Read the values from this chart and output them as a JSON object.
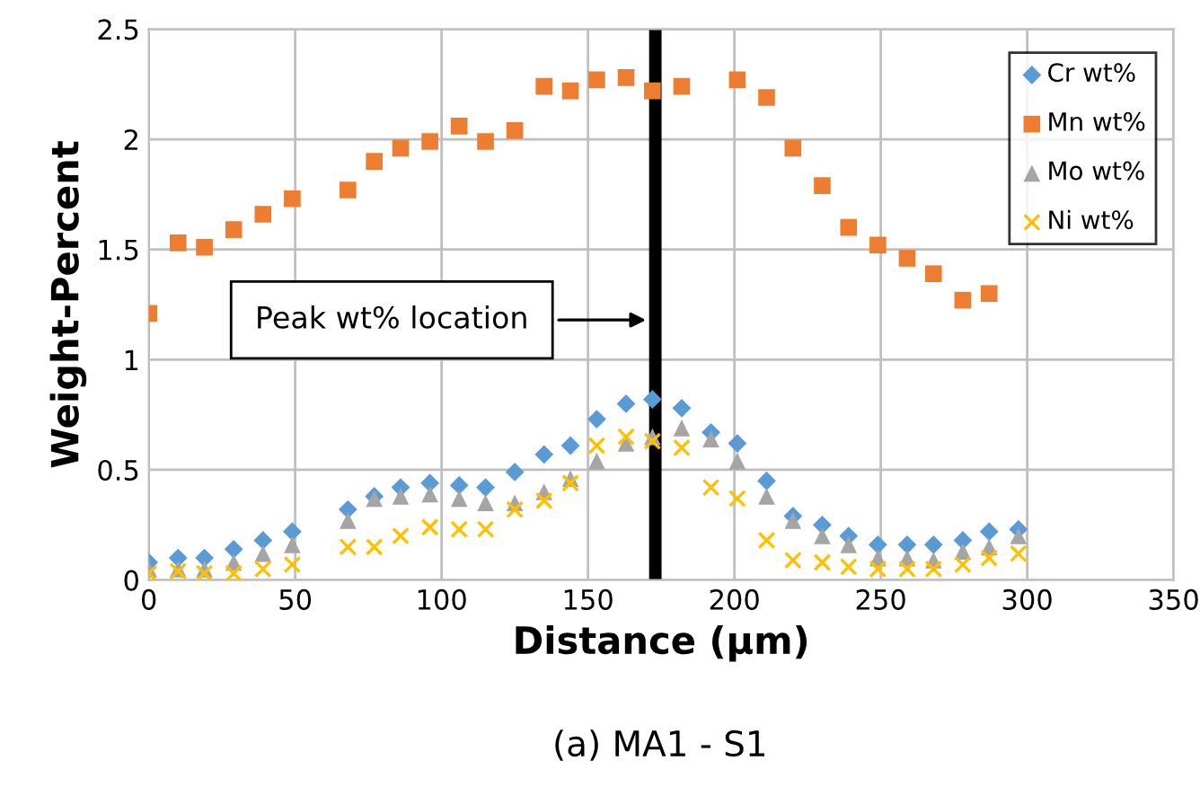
{
  "chart_data": {
    "type": "scatter",
    "xlabel": "Distance (µm)",
    "ylabel": "Weight-Percent",
    "x": [
      0,
      10,
      19,
      29,
      39,
      49,
      68,
      77,
      86,
      96,
      106,
      115,
      125,
      135,
      144,
      153,
      163,
      172,
      182,
      192,
      201,
      211,
      220,
      230,
      239,
      249,
      259,
      268,
      278,
      287,
      297
    ],
    "series": [
      {
        "name": "Cr wt%",
        "color": "#5b9bd5",
        "marker": "diamond",
        "values": [
          0.08,
          0.1,
          0.1,
          0.14,
          0.18,
          0.22,
          0.32,
          0.38,
          0.42,
          0.44,
          0.43,
          0.42,
          0.49,
          0.57,
          0.61,
          0.73,
          0.8,
          0.82,
          0.78,
          0.67,
          0.62,
          0.45,
          0.29,
          0.25,
          0.2,
          0.16,
          0.16,
          0.16,
          0.18,
          0.22,
          0.23
        ]
      },
      {
        "name": "Mn wt%",
        "color": "#ed7d31",
        "marker": "square",
        "values": [
          1.21,
          1.53,
          1.51,
          1.59,
          1.66,
          1.73,
          1.77,
          1.9,
          1.96,
          1.99,
          2.06,
          1.99,
          2.04,
          2.24,
          2.22,
          2.27,
          2.28,
          2.22,
          2.24,
          null,
          2.27,
          2.19,
          1.96,
          1.79,
          1.6,
          1.52,
          1.46,
          1.39,
          1.27,
          1.3,
          null
        ]
      },
      {
        "name": "Mo wt%",
        "color": "#a5a5a5",
        "marker": "triangle",
        "values": [
          0.05,
          0.05,
          0.05,
          0.08,
          0.12,
          0.16,
          0.27,
          0.37,
          0.38,
          0.39,
          0.37,
          0.35,
          0.35,
          0.4,
          0.46,
          0.54,
          0.62,
          0.65,
          0.69,
          0.64,
          0.54,
          0.38,
          0.27,
          0.2,
          0.16,
          0.1,
          0.1,
          0.09,
          0.13,
          0.15,
          0.2
        ]
      },
      {
        "name": "Ni wt%",
        "color": "#ffc000",
        "marker": "cross",
        "values": [
          0.03,
          0.04,
          0.03,
          0.03,
          0.05,
          0.07,
          0.15,
          0.15,
          0.2,
          0.24,
          0.23,
          0.23,
          0.32,
          0.36,
          0.44,
          0.61,
          0.65,
          0.63,
          0.6,
          0.42,
          0.37,
          0.18,
          0.09,
          0.08,
          0.06,
          0.05,
          0.05,
          0.05,
          0.07,
          0.1,
          0.12
        ]
      }
    ],
    "xlim": [
      0,
      350
    ],
    "xticks": [
      0,
      50,
      100,
      150,
      200,
      250,
      300,
      350
    ],
    "ylim": [
      0,
      2.5
    ],
    "yticks": [
      0,
      0.5,
      1,
      1.5,
      2,
      2.5
    ],
    "ref_lines": [
      {
        "axis": "x",
        "value": 173,
        "label": "Peak wt% location",
        "color": "#000000"
      }
    ],
    "annotations": [
      "(a) MA1 - S1"
    ],
    "grid": true,
    "legend": "top right"
  }
}
